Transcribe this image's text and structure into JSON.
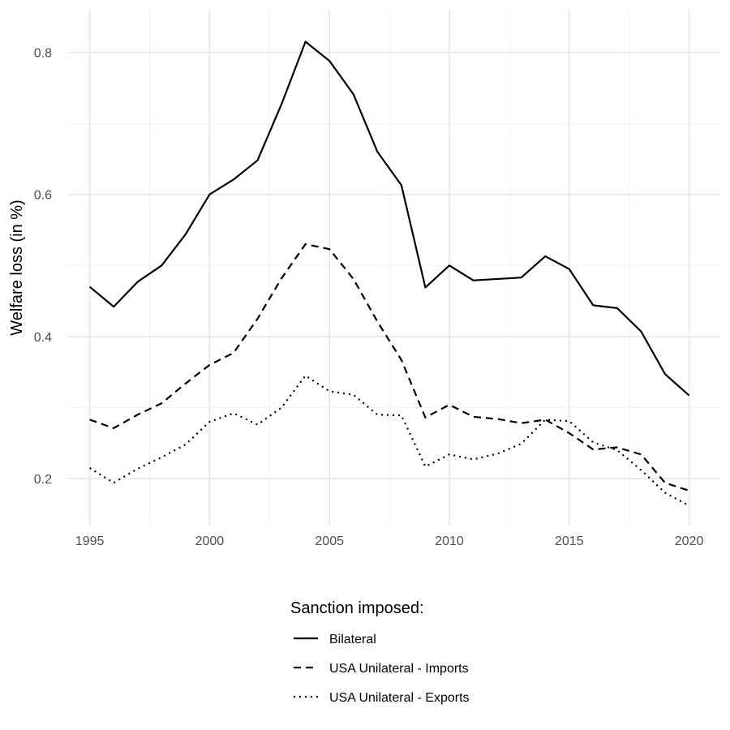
{
  "chart_data": {
    "type": "line",
    "title": "",
    "xlabel": "",
    "ylabel": "Welfare loss (in %)",
    "xlim": [
      1994.1,
      2021.3
    ],
    "ylim": [
      0.135,
      0.86
    ],
    "x_ticks": [
      1995,
      2000,
      2005,
      2010,
      2015,
      2020
    ],
    "y_ticks": [
      0.2,
      0.4,
      0.6,
      0.8
    ],
    "x_tick_labels": [
      "1995",
      "2000",
      "2005",
      "2010",
      "2015",
      "2020"
    ],
    "y_tick_labels": [
      "0.2",
      "0.4",
      "0.6",
      "0.8"
    ],
    "grid": true,
    "legend_position": "bottom",
    "legend_title": "Sanction imposed:",
    "x": [
      1995,
      1996,
      1997,
      1998,
      1999,
      2000,
      2001,
      2002,
      2003,
      2004,
      2005,
      2006,
      2007,
      2008,
      2009,
      2010,
      2011,
      2012,
      2013,
      2014,
      2015,
      2016,
      2017,
      2018,
      2019,
      2020
    ],
    "series": [
      {
        "name": "Bilateral",
        "line_style": "solid",
        "values": [
          0.47,
          0.442,
          0.477,
          0.5,
          0.544,
          0.6,
          0.621,
          0.648,
          0.727,
          0.815,
          0.788,
          0.741,
          0.66,
          0.613,
          0.469,
          0.5,
          0.479,
          0.481,
          0.483,
          0.513,
          0.495,
          0.444,
          0.44,
          0.407,
          0.347,
          0.317
        ]
      },
      {
        "name": "USA Unilateral - Imports",
        "line_style": "dashed",
        "values": [
          0.283,
          0.271,
          0.29,
          0.306,
          0.334,
          0.36,
          0.377,
          0.425,
          0.482,
          0.53,
          0.523,
          0.481,
          0.421,
          0.367,
          0.286,
          0.304,
          0.287,
          0.284,
          0.278,
          0.283,
          0.264,
          0.241,
          0.244,
          0.234,
          0.194,
          0.183
        ]
      },
      {
        "name": "USA Unilateral - Exports",
        "line_style": "dotted",
        "values": [
          0.215,
          0.194,
          0.214,
          0.23,
          0.248,
          0.28,
          0.292,
          0.276,
          0.3,
          0.345,
          0.323,
          0.318,
          0.29,
          0.289,
          0.217,
          0.234,
          0.227,
          0.235,
          0.249,
          0.283,
          0.281,
          0.251,
          0.24,
          0.212,
          0.18,
          0.162
        ]
      }
    ]
  }
}
